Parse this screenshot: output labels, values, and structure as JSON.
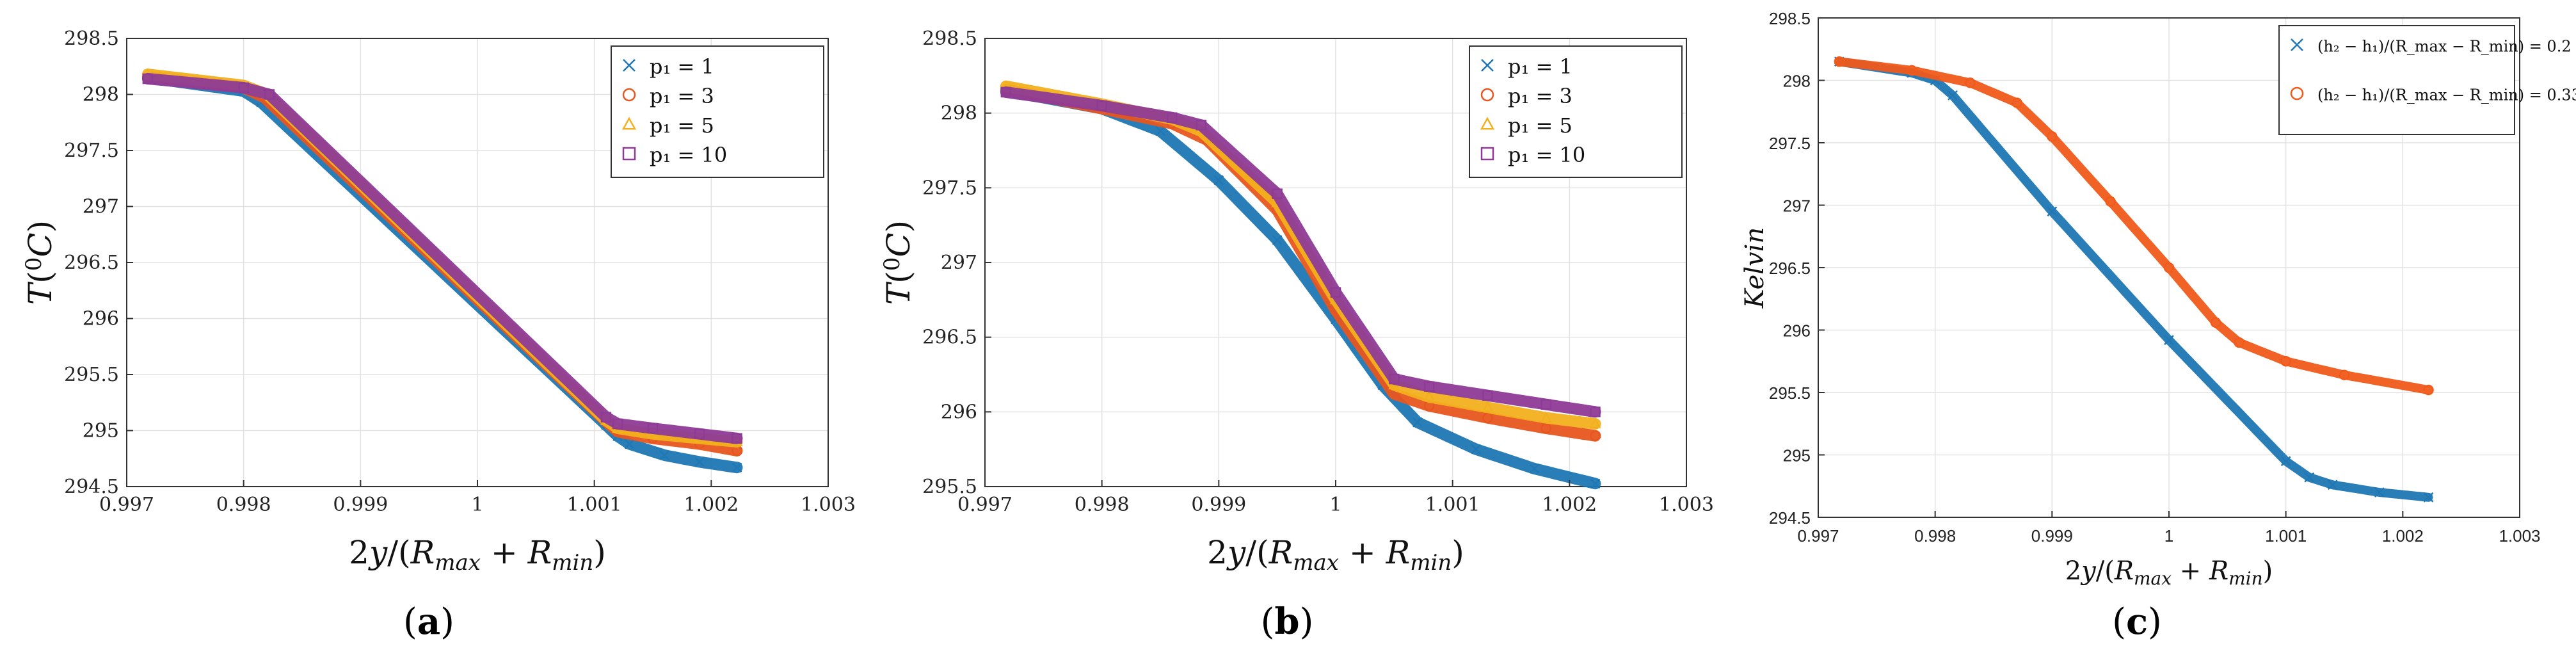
{
  "chart_data": [
    {
      "type": "scatter",
      "panel": "a",
      "caption": "(a)",
      "xlabel": "2y/(R_max + R_min)",
      "ylabel": "T(⁰C)",
      "xlim": [
        0.997,
        1.003
      ],
      "ylim": [
        294.5,
        298.5
      ],
      "xticks": [
        "0.997",
        "0.998",
        "0.999",
        "1",
        "1.001",
        "1.002",
        "1.003"
      ],
      "yticks": [
        "294.5",
        "295",
        "295.5",
        "296",
        "296.5",
        "297",
        "297.5",
        "298",
        "298.5"
      ],
      "grid": true,
      "legend": "top-right",
      "series": [
        {
          "name": "p₁ = 1",
          "marker": "x",
          "color": "#1f77b4",
          "x": [
            0.99718,
            0.998,
            0.99815,
            1.0011,
            1.0012,
            1.0013,
            1.0016,
            1.0019,
            1.00222
          ],
          "y": [
            298.15,
            298.03,
            297.93,
            295.05,
            294.95,
            294.88,
            294.78,
            294.72,
            294.67
          ]
        },
        {
          "name": "p₁ = 3",
          "marker": "o",
          "color": "#e8561f",
          "x": [
            0.99718,
            0.998,
            0.99818,
            1.0011,
            1.0012,
            1.0015,
            1.0019,
            1.00222
          ],
          "y": [
            298.16,
            298.06,
            297.97,
            295.08,
            294.99,
            294.93,
            294.88,
            294.82
          ]
        },
        {
          "name": "p₁ = 5",
          "marker": "triangle",
          "color": "#f2b01e",
          "x": [
            0.99718,
            0.998,
            0.9982,
            1.0011,
            1.0012,
            1.0015,
            1.0019,
            1.00222
          ],
          "y": [
            298.18,
            298.08,
            298.0,
            295.09,
            295.02,
            294.97,
            294.93,
            294.9
          ]
        },
        {
          "name": "p₁ = 10",
          "marker": "square",
          "color": "#8e3b96",
          "x": [
            0.99718,
            0.998,
            0.99822,
            1.0011,
            1.0012,
            1.0015,
            1.0019,
            1.00222
          ],
          "y": [
            298.14,
            298.06,
            298.0,
            295.12,
            295.06,
            295.02,
            294.97,
            294.93
          ]
        }
      ]
    },
    {
      "type": "scatter",
      "panel": "b",
      "caption": "(b)",
      "xlabel": "2y/(R_max + R_min)",
      "ylabel": "T(⁰C)",
      "xlim": [
        0.997,
        1.003
      ],
      "ylim": [
        295.5,
        298.5
      ],
      "xticks": [
        "0.997",
        "0.998",
        "0.999",
        "1",
        "1.001",
        "1.002",
        "1.003"
      ],
      "yticks": [
        "295.5",
        "296",
        "296.5",
        "297",
        "297.5",
        "298",
        "298.5"
      ],
      "grid": true,
      "legend": "top-right",
      "series": [
        {
          "name": "p₁ = 1",
          "marker": "x",
          "color": "#1f77b4",
          "x": [
            0.99718,
            0.998,
            0.9985,
            0.999,
            0.9995,
            1.0,
            1.0004,
            1.0007,
            1.0012,
            1.0017,
            1.00222
          ],
          "y": [
            298.15,
            298.03,
            297.88,
            297.55,
            297.15,
            296.62,
            296.18,
            295.93,
            295.75,
            295.62,
            295.52
          ]
        },
        {
          "name": "p₁ = 3",
          "marker": "o",
          "color": "#e8561f",
          "x": [
            0.99718,
            0.998,
            0.9986,
            0.9989,
            0.9995,
            1.0,
            1.0005,
            1.0008,
            1.0013,
            1.0018,
            1.00222
          ],
          "y": [
            298.16,
            298.03,
            297.93,
            297.82,
            297.35,
            296.68,
            296.12,
            296.04,
            295.96,
            295.89,
            295.84
          ]
        },
        {
          "name": "p₁ = 5",
          "marker": "triangle",
          "color": "#f2b01e",
          "x": [
            0.99718,
            0.998,
            0.9986,
            0.99885,
            0.9995,
            1.0,
            1.0005,
            1.0008,
            1.0013,
            1.0018,
            1.00222
          ],
          "y": [
            298.18,
            298.06,
            297.96,
            297.88,
            297.4,
            296.75,
            296.18,
            296.1,
            296.03,
            295.96,
            295.92
          ]
        },
        {
          "name": "p₁ = 10",
          "marker": "square",
          "color": "#8e3b96",
          "x": [
            0.99718,
            0.998,
            0.9986,
            0.99885,
            0.9995,
            1.0,
            1.0005,
            1.0008,
            1.0013,
            1.0018,
            1.00222
          ],
          "y": [
            298.14,
            298.05,
            297.97,
            297.92,
            297.46,
            296.8,
            296.22,
            296.17,
            296.11,
            296.05,
            296.0
          ]
        }
      ]
    },
    {
      "type": "scatter",
      "panel": "c",
      "caption": "(c)",
      "xlabel": "2y/(R_max + R_min)",
      "ylabel": "Kelvin",
      "xlim": [
        0.997,
        1.003
      ],
      "ylim": [
        294.5,
        298.5
      ],
      "xticks": [
        "0.997",
        "0.998",
        "0.999",
        "1",
        "1.001",
        "1.002",
        "1.003"
      ],
      "yticks": [
        "294.5",
        "295",
        "295.5",
        "296",
        "296.5",
        "297",
        "297.5",
        "298",
        "298.5"
      ],
      "grid": true,
      "legend": "top-right",
      "series": [
        {
          "name": "(h₂ − h₁)/(R_max − R_min) = 0.2",
          "marker": "x",
          "color": "#1f77b4",
          "x": [
            0.99718,
            0.9978,
            0.998,
            0.99815,
            0.999,
            1.0,
            1.001,
            1.0012,
            1.0014,
            1.0018,
            1.00222
          ],
          "y": [
            298.15,
            298.06,
            298.0,
            297.88,
            296.95,
            295.92,
            294.95,
            294.82,
            294.76,
            294.7,
            294.66
          ]
        },
        {
          "name": "(h₂ − h₁)/(R_max − R_min) = 0.33",
          "marker": "o",
          "color": "#f05a1a",
          "x": [
            0.99718,
            0.9978,
            0.9983,
            0.9987,
            0.999,
            0.9995,
            1.0,
            1.0004,
            1.0006,
            1.001,
            1.0015,
            1.00222
          ],
          "y": [
            298.15,
            298.08,
            297.98,
            297.82,
            297.55,
            297.03,
            296.5,
            296.06,
            295.9,
            295.75,
            295.64,
            295.52
          ]
        }
      ]
    }
  ]
}
